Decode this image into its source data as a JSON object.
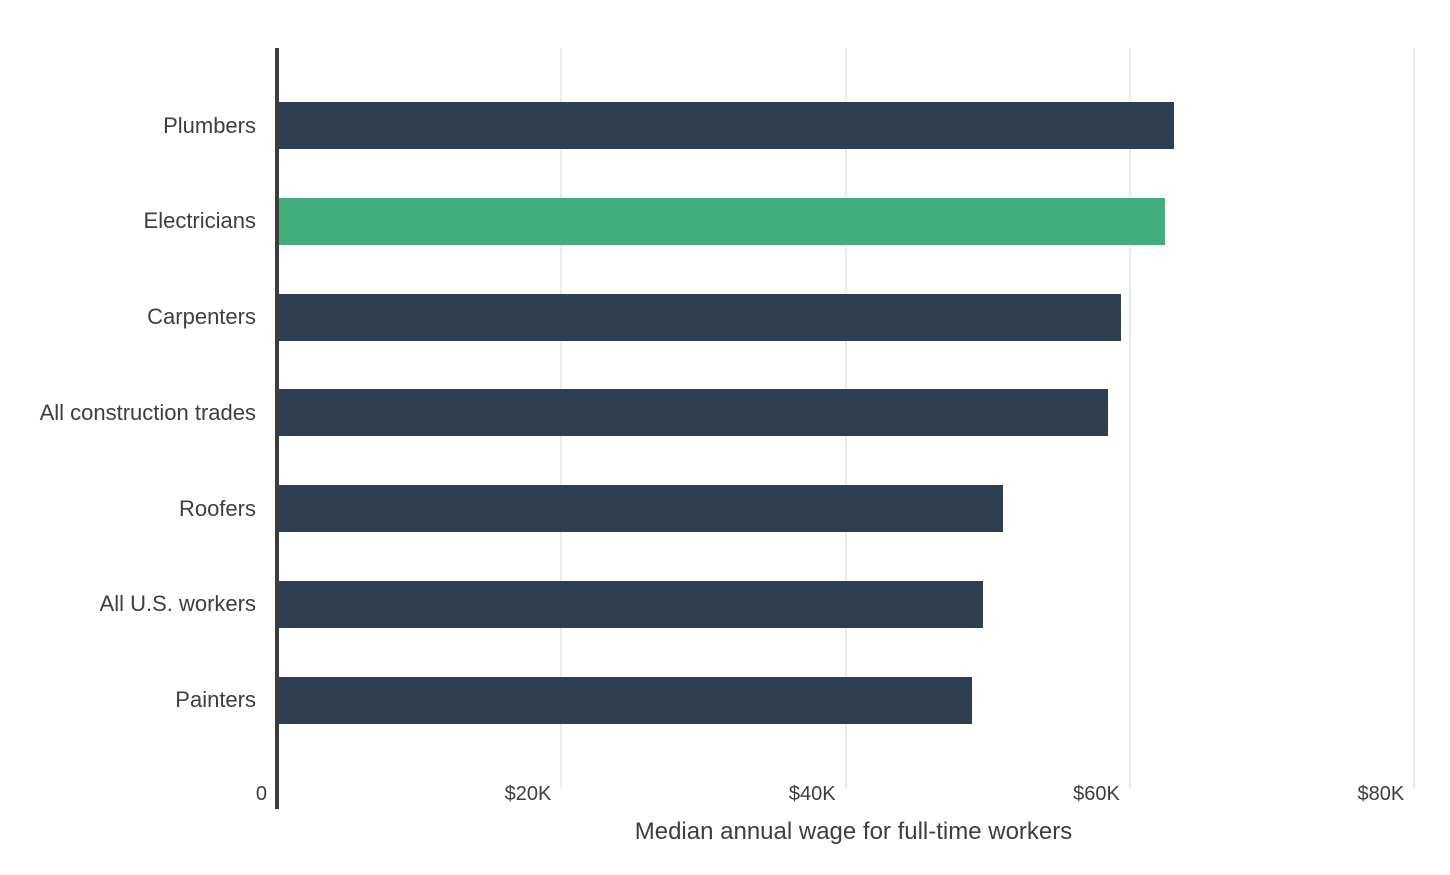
{
  "chart": {
    "colors": {
      "background": "#ffffff",
      "bar": "#2d3e50",
      "highlight": "#41ad7a",
      "axis_line": "#3d3d3d",
      "gridline": "#ececec",
      "text": "#3e3e3e"
    }
  },
  "chart_data": {
    "type": "bar",
    "orientation": "horizontal",
    "title": "",
    "categories": [
      "Plumbers",
      "Electricians",
      "Carpenters",
      "All construction trades",
      "Roofers",
      "All U.S. workers",
      "Painters"
    ],
    "values": [
      63000,
      62400,
      59300,
      58400,
      51000,
      49600,
      48800
    ],
    "highlight_index": 1,
    "highlight_category": "Electricians",
    "bar_color": "#2d3e50",
    "highlight_color": "#41ad7a",
    "xlabel": "Median annual wage for full-time workers",
    "ylabel": "",
    "xlim": [
      0,
      81000
    ],
    "xticks": [
      {
        "label": "0",
        "value": 0
      },
      {
        "label": "$20K",
        "value": 20000
      },
      {
        "label": "$40K",
        "value": 40000
      },
      {
        "label": "$60K",
        "value": 60000
      },
      {
        "label": "$80K",
        "value": 80000
      }
    ],
    "grid": "vertical-only",
    "legend": "none"
  }
}
